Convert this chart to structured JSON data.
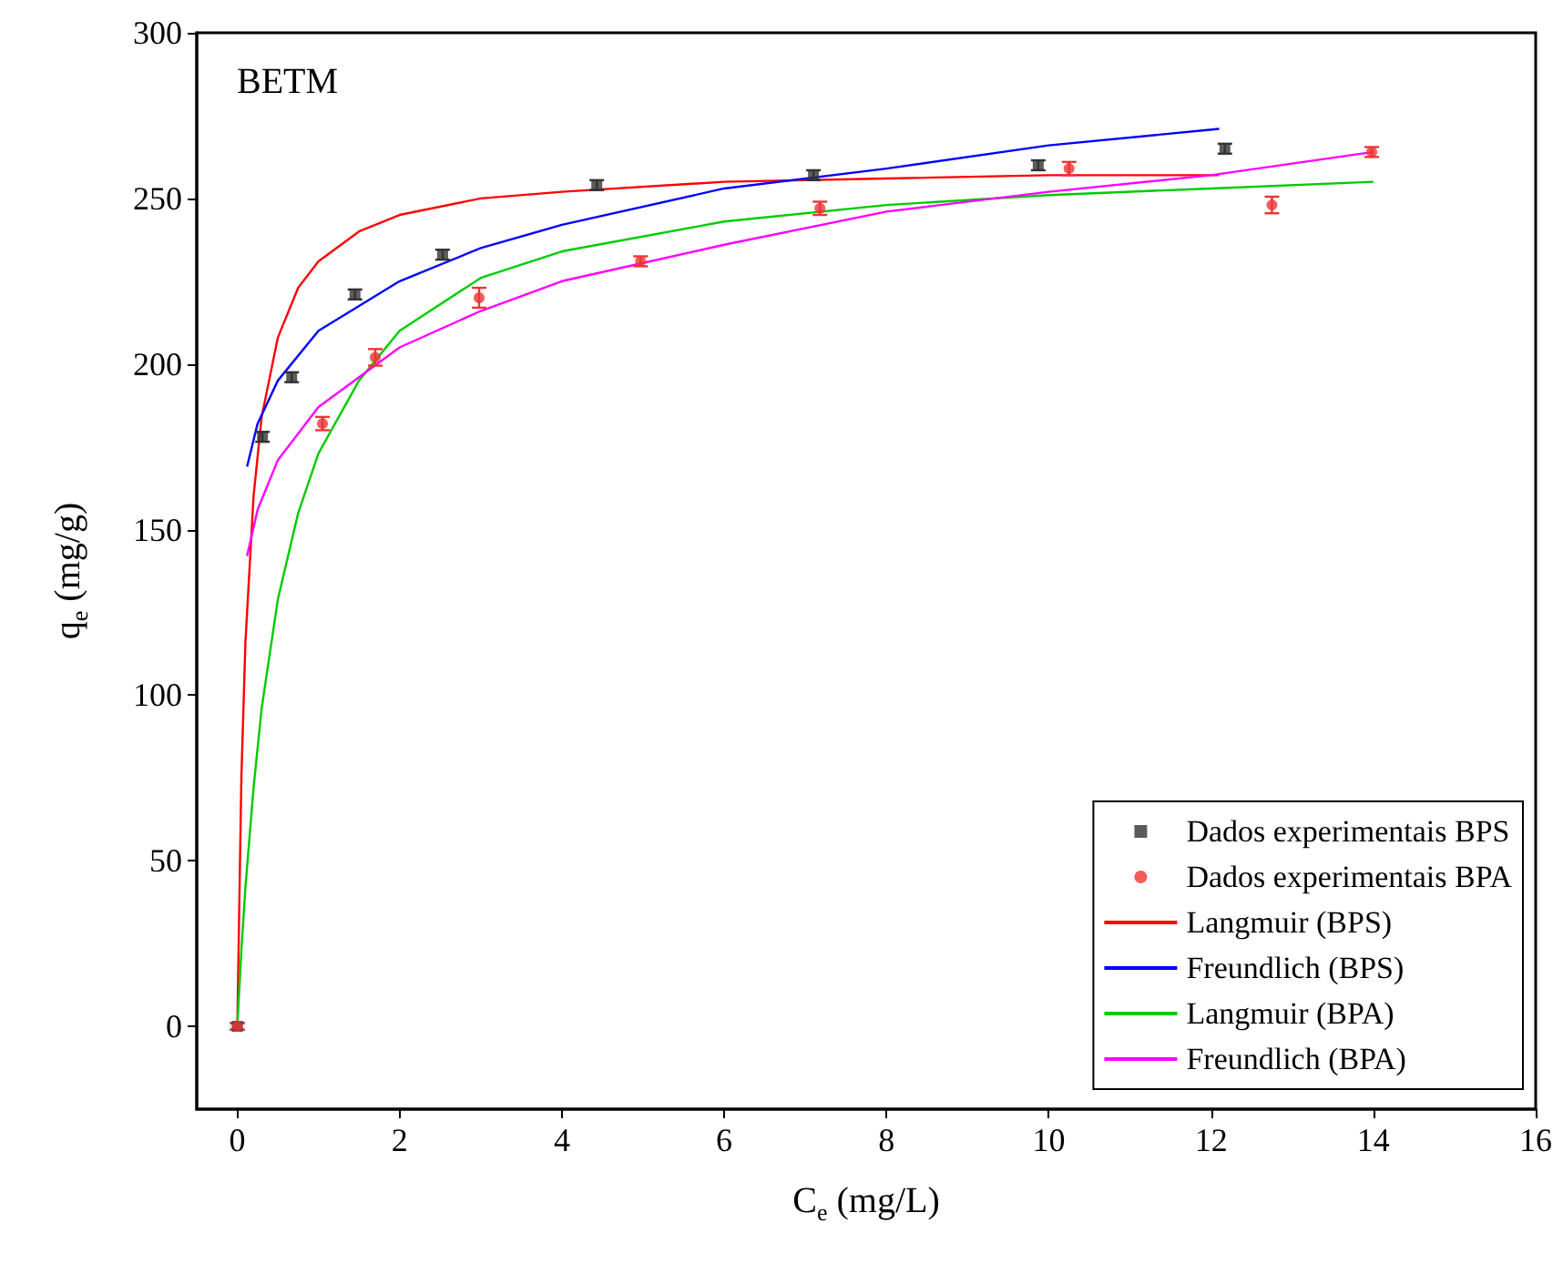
{
  "chart_data": {
    "type": "scatter",
    "title": "BETM",
    "xlabel": "C$_{e}$ (mg/L)",
    "ylabel": "q$_{e}$ (mg/g)",
    "xlim": [
      -0.5,
      16
    ],
    "xticks": [
      0,
      2,
      4,
      6,
      8,
      10,
      12,
      14,
      16
    ],
    "ylim": [
      -25,
      300
    ],
    "yticks": [
      0,
      50,
      100,
      150,
      200,
      250,
      300
    ],
    "grid": false,
    "legend": "bottom right",
    "series": [
      {
        "name": "Dados experimentais BPS",
        "type": "scatter",
        "marker": "square",
        "color": "#333333",
        "x": [
          0,
          0.31,
          0.67,
          1.45,
          2.53,
          4.43,
          7.1,
          9.87,
          12.17
        ],
        "values": [
          0,
          178,
          196,
          221,
          233,
          254,
          257,
          260,
          265
        ],
        "errors": [
          1,
          1.5,
          1.5,
          1.5,
          1.5,
          1.5,
          1.5,
          1.5,
          1.5
        ]
      },
      {
        "name": "Dados experimentais BPA",
        "type": "scatter",
        "marker": "circle",
        "color": "#ee3333",
        "x": [
          0,
          1.05,
          1.7,
          2.98,
          4.97,
          7.18,
          10.25,
          12.75,
          13.98
        ],
        "values": [
          0,
          182,
          202,
          220,
          231,
          247,
          259,
          248,
          264
        ],
        "errors": [
          1,
          2,
          2.5,
          3,
          1.5,
          2,
          2,
          2.5,
          1.5
        ]
      },
      {
        "name": "Langmuir (BPS)",
        "type": "line",
        "marker": "none",
        "color": "#ff0000",
        "x": [
          0,
          0.05,
          0.1,
          0.2,
          0.3,
          0.5,
          0.75,
          1,
          1.5,
          2,
          3,
          4,
          6,
          8,
          10,
          12.1
        ],
        "values": [
          0,
          75,
          116,
          160,
          184,
          208,
          223,
          231,
          240,
          245,
          250,
          252,
          255,
          256,
          257,
          257
        ]
      },
      {
        "name": "Freundlich (BPS)",
        "type": "line",
        "marker": "none",
        "color": "#0000ff",
        "x": [
          0.12,
          0.25,
          0.5,
          1,
          2,
          3,
          4,
          6,
          8,
          10,
          12.1
        ],
        "values": [
          169,
          182,
          195,
          210,
          225,
          235,
          242,
          253,
          259,
          266,
          271
        ]
      },
      {
        "name": "Langmuir (BPA)",
        "type": "line",
        "marker": "none",
        "color": "#00cc00",
        "x": [
          0,
          0.05,
          0.1,
          0.2,
          0.3,
          0.5,
          0.75,
          1,
          1.5,
          2,
          3,
          4,
          6,
          8,
          10,
          12,
          14
        ],
        "values": [
          0,
          23,
          42,
          72,
          96,
          129,
          155,
          173,
          195,
          210,
          226,
          234,
          243,
          248,
          251,
          253,
          255
        ]
      },
      {
        "name": "Freundlich (BPA)",
        "type": "line",
        "marker": "none",
        "color": "#ff00ff",
        "x": [
          0.12,
          0.25,
          0.5,
          1,
          2,
          3,
          4,
          6,
          8,
          10,
          12,
          14
        ],
        "values": [
          142,
          156,
          171,
          187,
          205,
          216,
          225,
          236,
          246,
          252,
          257,
          264
        ]
      }
    ]
  }
}
